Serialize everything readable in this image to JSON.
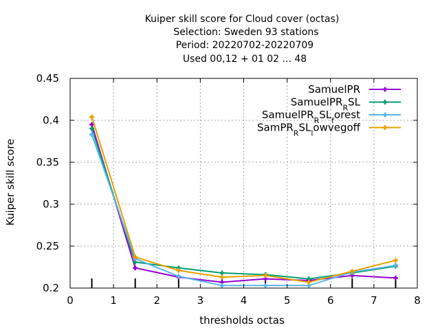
{
  "chart_data": {
    "type": "line",
    "title_lines": [
      "Kuiper skill score  for Cloud cover (octas)",
      "Selection: Sweden     93 stations",
      "Period: 20220702-20220709",
      "Used  00,12  + 01 02 ... 48"
    ],
    "xlabel": "thresholds octas",
    "ylabel": "Kuiper skill score",
    "xlim": [
      0,
      8
    ],
    "ylim": [
      0.2,
      0.45
    ],
    "x_ticks": [
      "0",
      "1",
      "2",
      "3",
      "4",
      "5",
      "6",
      "7",
      "8"
    ],
    "y_ticks": [
      "0.2",
      "0.25",
      "0.3",
      "0.35",
      "0.4",
      "0.45"
    ],
    "grid": true,
    "legend_position": "top-right",
    "x": [
      0.5,
      1.5,
      2.5,
      3.5,
      4.5,
      5.5,
      6.5,
      7.5
    ],
    "series": [
      {
        "name": "SamuelPR",
        "legend_parts": [
          {
            "t": "SamuelPR"
          }
        ],
        "color": "#9400d3",
        "values": [
          0.395,
          0.224,
          0.213,
          0.207,
          0.211,
          0.209,
          0.215,
          0.212
        ]
      },
      {
        "name": "SamuelPR_RSL",
        "legend_parts": [
          {
            "t": "SamuelPR"
          },
          {
            "t": "R",
            "sub": true
          },
          {
            "t": "SL"
          }
        ],
        "color": "#009e73",
        "values": [
          0.39,
          0.231,
          0.224,
          0.218,
          0.216,
          0.211,
          0.218,
          0.226
        ]
      },
      {
        "name": "SamuelPR_RSL_forest",
        "legend_parts": [
          {
            "t": "SamuelPR"
          },
          {
            "t": "R",
            "sub": true
          },
          {
            "t": "SL"
          },
          {
            "t": "f",
            "sub": true
          },
          {
            "t": "orest"
          }
        ],
        "color": "#56b4e9",
        "values": [
          0.383,
          0.235,
          0.214,
          0.203,
          0.203,
          0.203,
          0.219,
          0.227
        ]
      },
      {
        "name": "SamPR_RSL_lowvegoff",
        "legend_parts": [
          {
            "t": "SamPR"
          },
          {
            "t": "R",
            "sub": true
          },
          {
            "t": "SL"
          },
          {
            "t": "l",
            "sub": true
          },
          {
            "t": "owvegoff"
          }
        ],
        "color": "#e69f00",
        "values": [
          0.404,
          0.237,
          0.221,
          0.213,
          0.215,
          0.207,
          0.22,
          0.233
        ]
      }
    ],
    "sample_marks_x": [
      0.5,
      1.5,
      2.5,
      3.5,
      4.5,
      5.5,
      6.5,
      7.5
    ]
  }
}
